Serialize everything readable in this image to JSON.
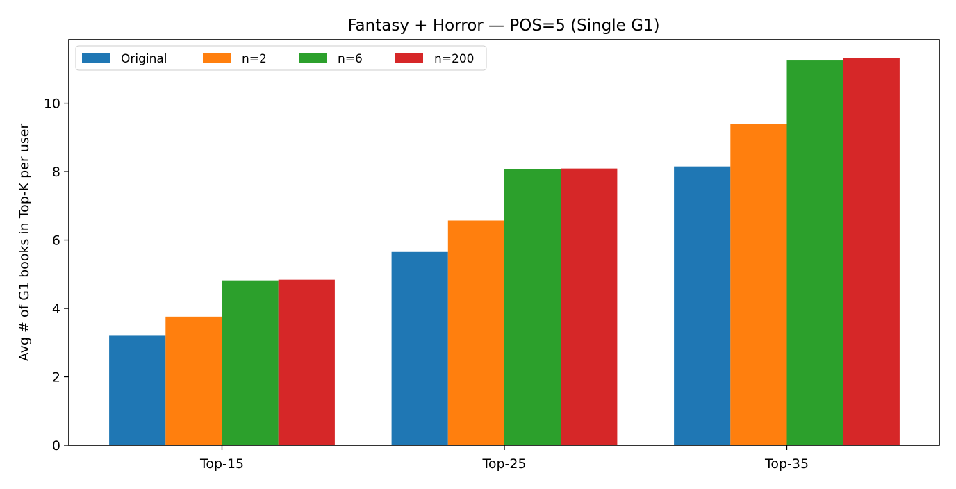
{
  "chart_data": {
    "type": "bar",
    "title": "Fantasy + Horror — POS=5 (Single G1)",
    "xlabel": "",
    "ylabel": "Avg # of G1 books in Top-K per user",
    "categories": [
      "Top-15",
      "Top-25",
      "Top-35"
    ],
    "series": [
      {
        "name": "Original",
        "color": "#1f77b4",
        "values": [
          3.2,
          5.65,
          8.15
        ]
      },
      {
        "name": "n=2",
        "color": "#ff7f0e",
        "values": [
          3.76,
          6.57,
          9.4
        ]
      },
      {
        "name": "n=6",
        "color": "#2ca02c",
        "values": [
          4.82,
          8.07,
          11.25
        ]
      },
      {
        "name": "n=200",
        "color": "#d62728",
        "values": [
          4.84,
          8.09,
          11.33
        ]
      }
    ],
    "ylim": [
      0,
      11.86
    ],
    "yticks": [
      0,
      2,
      4,
      6,
      8,
      10
    ],
    "grid": false,
    "legend": {
      "placement": "top-left",
      "columns": 4
    }
  }
}
